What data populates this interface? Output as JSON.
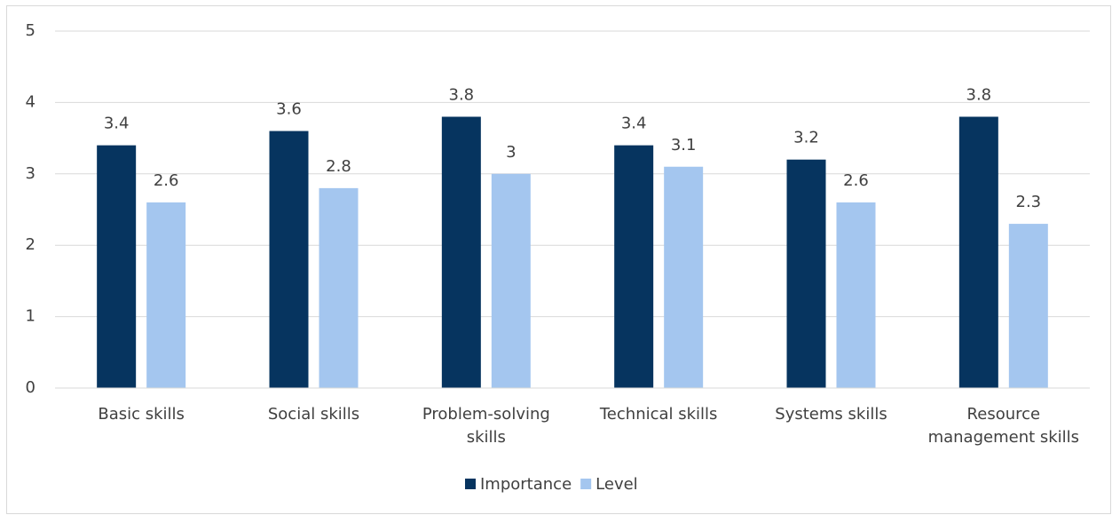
{
  "chart_data": {
    "type": "bar",
    "categories": [
      "Basic skills",
      "Social skills",
      "Problem-solving skills",
      "Technical skills",
      "Systems skills",
      "Resource management skills"
    ],
    "series": [
      {
        "name": "Importance",
        "color": "#06345f",
        "values": [
          3.4,
          3.6,
          3.8,
          3.4,
          3.2,
          3.8
        ]
      },
      {
        "name": "Level",
        "color": "#a4c6ef",
        "values": [
          2.6,
          2.8,
          3,
          3.1,
          2.6,
          2.3
        ]
      }
    ],
    "ylim": [
      0,
      5
    ],
    "yticks": [
      0,
      1,
      2,
      3,
      4,
      5
    ],
    "grid": true,
    "legend": "bottom"
  }
}
